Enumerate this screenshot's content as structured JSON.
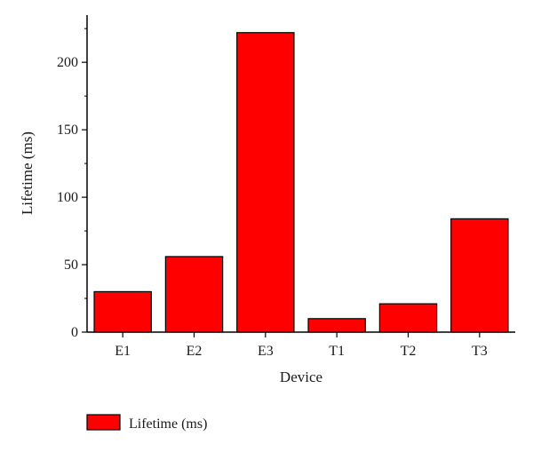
{
  "chart_data": {
    "type": "bar",
    "categories": [
      "E1",
      "E2",
      "E3",
      "T1",
      "T2",
      "T3"
    ],
    "series": [
      {
        "name": "Lifetime (ms)",
        "values": [
          30,
          56,
          222,
          10,
          21,
          84
        ]
      }
    ],
    "xlabel": "Device",
    "ylabel": "Lifetime (ms)",
    "ylim": [
      0,
      235
    ],
    "yticks": [
      0,
      50,
      100,
      150,
      200
    ],
    "grid": false,
    "legend": "bottom-left",
    "colors": {
      "bar": "#ff0000",
      "stroke": "#000000",
      "axis": "#000000"
    }
  }
}
